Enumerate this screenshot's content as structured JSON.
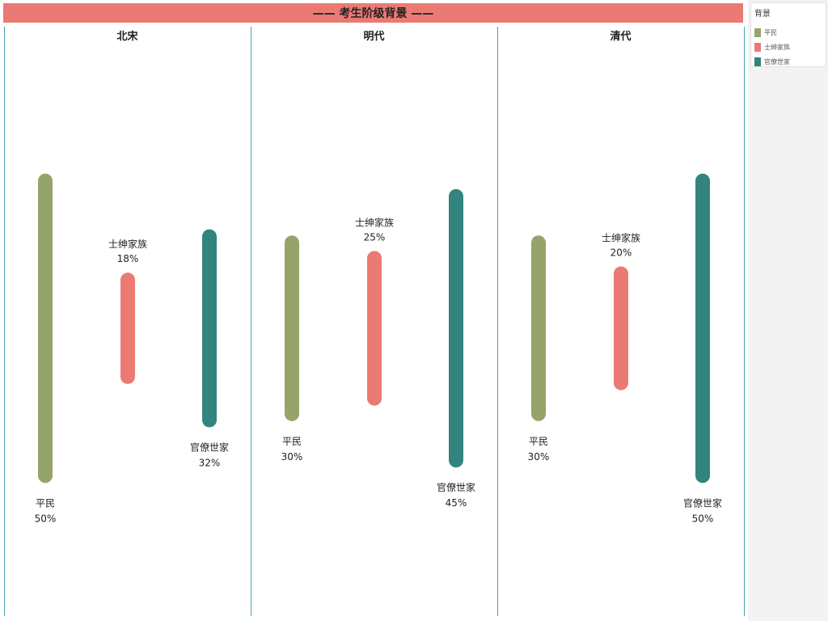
{
  "title": "考生阶级背景",
  "title_prefix": "——",
  "title_suffix": "——",
  "colors": {
    "title_bar": "#ea7a73",
    "divider": "#4aa3b0"
  },
  "legend": {
    "title": "背景",
    "items": [
      {
        "label": "平民",
        "color": "#95a46a"
      },
      {
        "label": "士绅家族",
        "color": "#ea7a73"
      },
      {
        "label": "官僚世家",
        "color": "#33837f"
      }
    ]
  },
  "chart_data": {
    "type": "bar",
    "title": "考生阶级背景",
    "panels": [
      {
        "name": "北宋",
        "values": [
          50,
          18,
          32
        ]
      },
      {
        "name": "明代",
        "values": [
          30,
          25,
          45
        ]
      },
      {
        "name": "清代",
        "values": [
          30,
          20,
          50
        ]
      }
    ],
    "categories": [
      "平民",
      "士绅家族",
      "官僚世家"
    ],
    "value_suffix": "%",
    "ylim": [
      0,
      50
    ]
  }
}
